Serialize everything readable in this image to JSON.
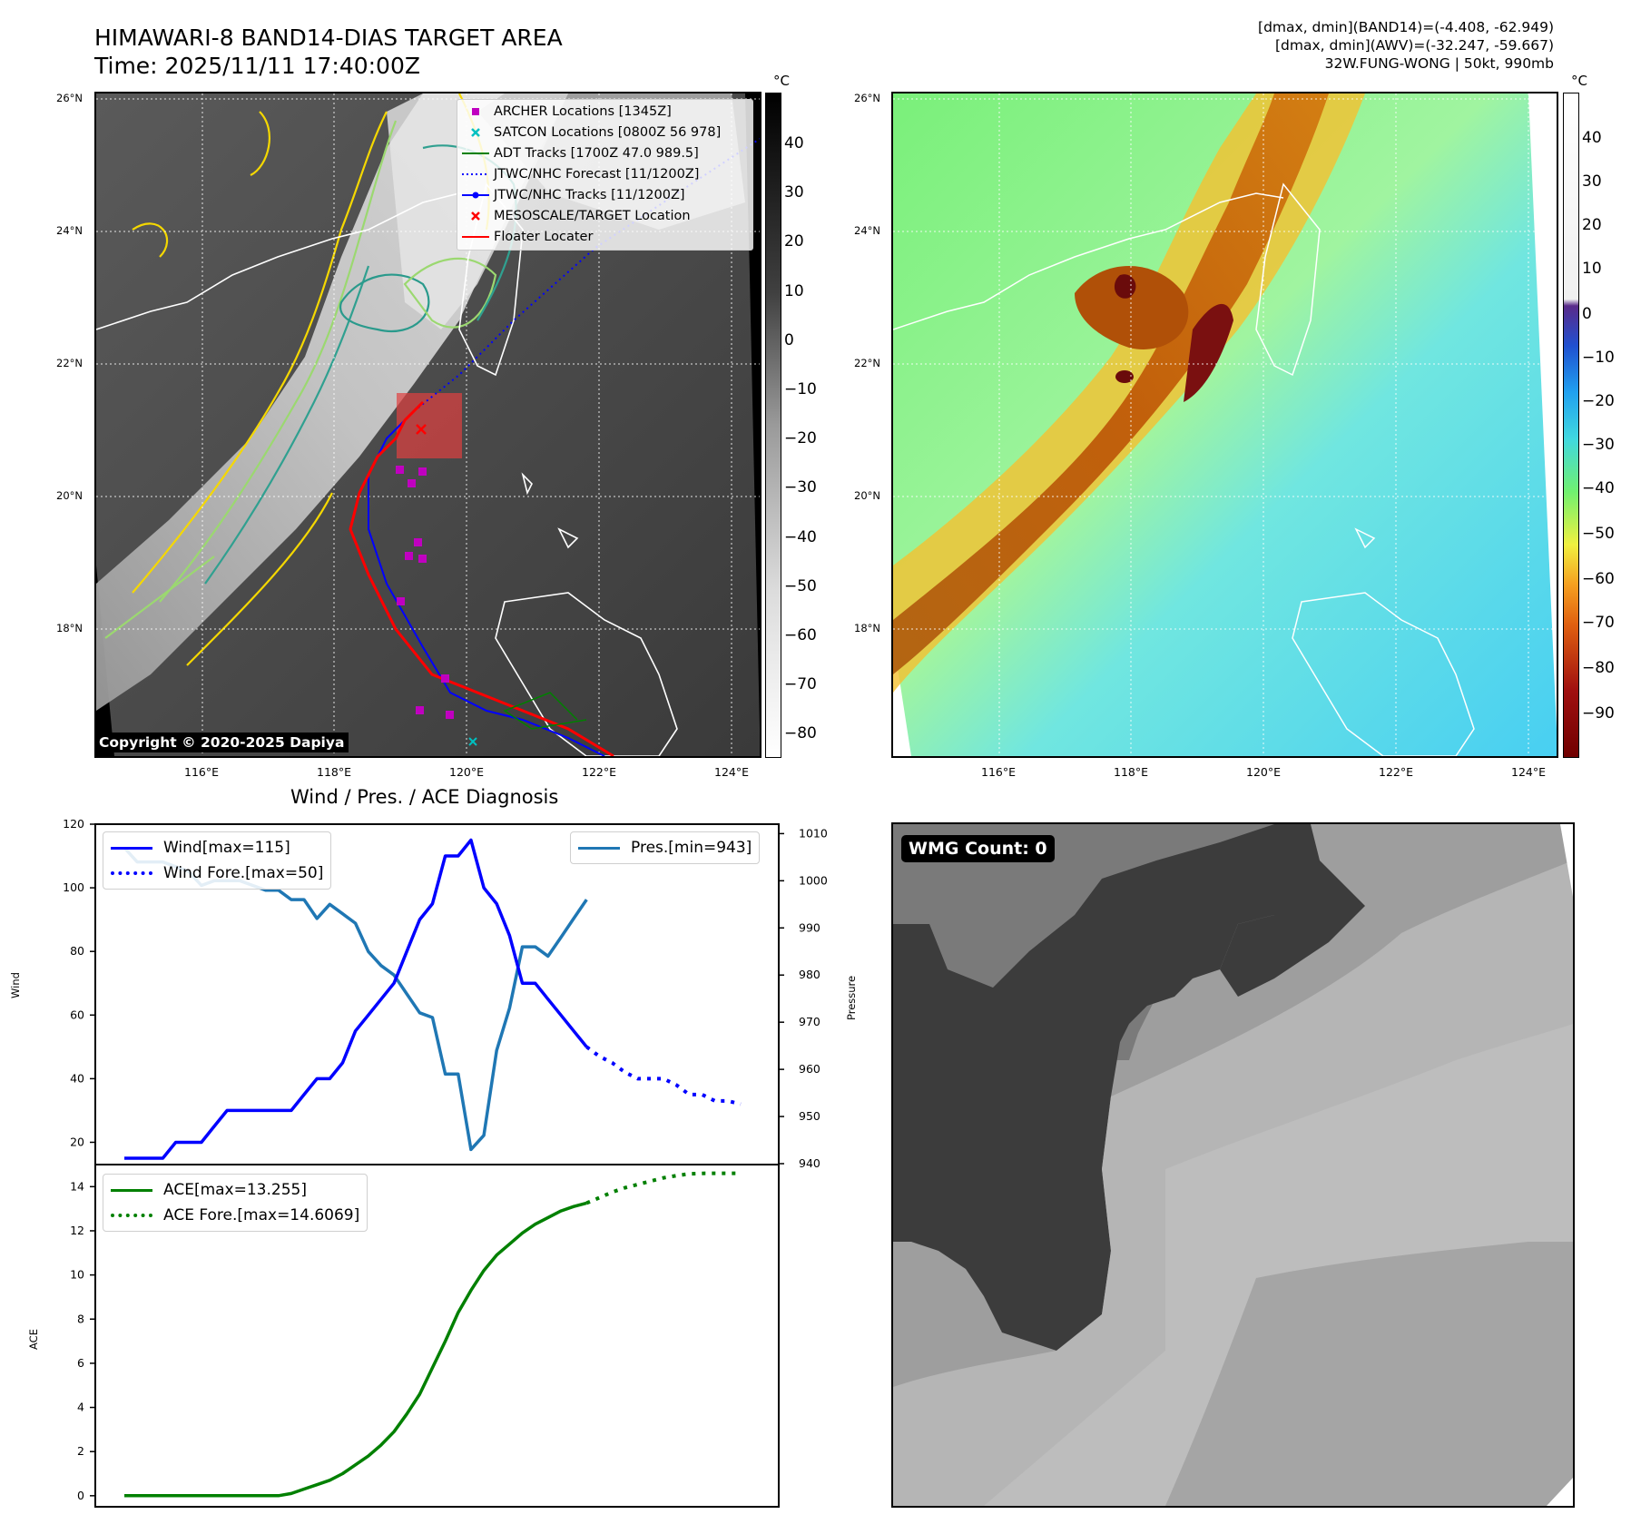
{
  "header": {
    "title_line1": "HIMAWARI-8 BAND14-DIAS TARGET AREA",
    "title_line2": "Time: 2025/11/11 17:40:00Z",
    "info_line1": "[dmax, dmin](BAND14)=(-4.408, -62.949)",
    "info_line2": "[dmax, dmin](AWV)=(-32.247, -59.667)",
    "info_line3": "32W.FUNG-WONG | 50kt, 990mb"
  },
  "map": {
    "lat_labels": [
      "26°N",
      "24°N",
      "22°N",
      "20°N",
      "18°N"
    ],
    "lon_labels": [
      "116°E",
      "118°E",
      "120°E",
      "122°E",
      "124°E"
    ],
    "unit": "°C",
    "copyright": "Copyright © 2020-2025 Dapiya",
    "gray_cbar_ticks": [
      "40",
      "30",
      "20",
      "10",
      "0",
      "−10",
      "−20",
      "−30",
      "−40",
      "−50",
      "−60",
      "−70",
      "−80"
    ],
    "color_cbar_ticks": [
      "40",
      "30",
      "20",
      "10",
      "0",
      "−10",
      "−20",
      "−30",
      "−40",
      "−50",
      "−60",
      "−70",
      "−80",
      "−90"
    ],
    "legend": [
      {
        "label": "ARCHER Locations [1345Z]",
        "symbol": "square",
        "color": "#c000c0"
      },
      {
        "label": "SATCON Locations [0800Z 56 978]",
        "symbol": "x",
        "color": "#00c0c0"
      },
      {
        "label": "ADT Tracks [1700Z 47.0 989.5]",
        "symbol": "line",
        "color": "#008000"
      },
      {
        "label": "JTWC/NHC Forecast [11/1200Z]",
        "symbol": "dotted",
        "color": "#0000ff"
      },
      {
        "label": "JTWC/NHC Tracks [11/1200Z]",
        "symbol": "dotline",
        "color": "#0000ff"
      },
      {
        "label": "MESOSCALE/TARGET Location",
        "symbol": "x",
        "color": "#ff0000"
      },
      {
        "label": "Floater Locater",
        "symbol": "line",
        "color": "#ff0000"
      }
    ]
  },
  "diagnosis": {
    "title": "Wind / Pres. / ACE Diagnosis",
    "wind_axis_label": "Wind",
    "pressure_axis_label": "Pressure",
    "ace_axis_label": "ACE",
    "legend_wind": "Wind[max=115]",
    "legend_wind_fore": "Wind Fore.[max=50]",
    "legend_pres": "Pres.[min=943]",
    "legend_ace": "ACE[max=13.255]",
    "legend_ace_fore": "ACE Fore.[max=14.6069]",
    "wmg_label": "WMG Count: 0"
  },
  "chart_data": [
    {
      "type": "line",
      "title": "Wind / Pres. / ACE Diagnosis",
      "ylabel": "Wind",
      "ylim": [
        13,
        120
      ],
      "yticks": [
        20,
        40,
        60,
        80,
        100,
        120
      ],
      "y2label": "Pressure",
      "y2lim": [
        940,
        1012
      ],
      "y2ticks": [
        940,
        950,
        960,
        970,
        980,
        990,
        1000,
        1010
      ],
      "x": [
        0,
        1,
        2,
        3,
        4,
        5,
        6,
        7,
        8,
        9,
        10,
        11,
        12,
        13,
        14,
        15,
        16,
        17,
        18,
        19,
        20,
        21,
        22,
        23,
        24,
        25,
        26,
        27,
        28,
        29,
        30,
        31,
        32,
        33,
        34,
        35,
        36,
        37,
        38,
        39,
        40,
        41,
        42,
        43,
        44,
        45,
        46,
        47,
        48
      ],
      "series": [
        {
          "name": "Wind",
          "style": "solid",
          "color": "#0000ff",
          "values": [
            15,
            15,
            15,
            15,
            20,
            20,
            20,
            25,
            30,
            30,
            30,
            30,
            30,
            30,
            35,
            40,
            40,
            45,
            55,
            60,
            65,
            70,
            80,
            90,
            95,
            110,
            110,
            115,
            100,
            95,
            85,
            70,
            70,
            65,
            60,
            55,
            50,
            null,
            null,
            null,
            null,
            null,
            null,
            null,
            null,
            null,
            null,
            null,
            null
          ]
        },
        {
          "name": "Wind Fore.",
          "style": "dotted",
          "color": "#0000ff",
          "values": [
            null,
            null,
            null,
            null,
            null,
            null,
            null,
            null,
            null,
            null,
            null,
            null,
            null,
            null,
            null,
            null,
            null,
            null,
            null,
            null,
            null,
            null,
            null,
            null,
            null,
            null,
            null,
            null,
            null,
            null,
            null,
            null,
            null,
            null,
            null,
            null,
            50,
            47,
            45,
            42,
            40,
            40,
            40,
            38,
            35,
            35,
            33,
            33,
            32
          ]
        },
        {
          "name": "Pres.",
          "axis": "right",
          "style": "solid",
          "color": "#1f77b4",
          "values": [
            1007,
            1004,
            1004,
            1004,
            1003,
            1002,
            999,
            1000,
            1000,
            1000,
            999,
            998,
            998,
            996,
            996,
            992,
            995,
            993,
            991,
            985,
            982,
            980,
            976,
            972,
            971,
            959,
            959,
            943,
            946,
            964,
            973,
            986,
            986,
            984,
            988,
            992,
            996,
            null,
            null,
            null,
            null,
            null,
            null,
            null,
            null,
            null,
            null,
            null,
            null
          ]
        }
      ]
    },
    {
      "type": "line",
      "ylabel": "ACE",
      "ylim": [
        -0.5,
        15
      ],
      "yticks": [
        0,
        2,
        4,
        6,
        8,
        10,
        12,
        14
      ],
      "x": [
        0,
        1,
        2,
        3,
        4,
        5,
        6,
        7,
        8,
        9,
        10,
        11,
        12,
        13,
        14,
        15,
        16,
        17,
        18,
        19,
        20,
        21,
        22,
        23,
        24,
        25,
        26,
        27,
        28,
        29,
        30,
        31,
        32,
        33,
        34,
        35,
        36,
        37,
        38,
        39,
        40,
        41,
        42,
        43,
        44,
        45,
        46,
        47,
        48
      ],
      "series": [
        {
          "name": "ACE",
          "style": "solid",
          "color": "#008000",
          "values": [
            0,
            0,
            0,
            0,
            0,
            0,
            0,
            0,
            0,
            0,
            0,
            0,
            0,
            0.1,
            0.3,
            0.5,
            0.7,
            1.0,
            1.4,
            1.8,
            2.3,
            2.9,
            3.7,
            4.6,
            5.8,
            7.0,
            8.3,
            9.3,
            10.2,
            10.9,
            11.4,
            11.9,
            12.3,
            12.6,
            12.9,
            13.1,
            13.255,
            null,
            null,
            null,
            null,
            null,
            null,
            null,
            null,
            null,
            null,
            null,
            null
          ]
        },
        {
          "name": "ACE Fore.",
          "style": "dotted",
          "color": "#008000",
          "values": [
            null,
            null,
            null,
            null,
            null,
            null,
            null,
            null,
            null,
            null,
            null,
            null,
            null,
            null,
            null,
            null,
            null,
            null,
            null,
            null,
            null,
            null,
            null,
            null,
            null,
            null,
            null,
            null,
            null,
            null,
            null,
            null,
            null,
            null,
            null,
            null,
            13.255,
            13.5,
            13.75,
            13.95,
            14.1,
            14.25,
            14.4,
            14.5,
            14.58,
            14.6,
            14.6069,
            14.6069,
            14.6069
          ]
        }
      ]
    }
  ]
}
